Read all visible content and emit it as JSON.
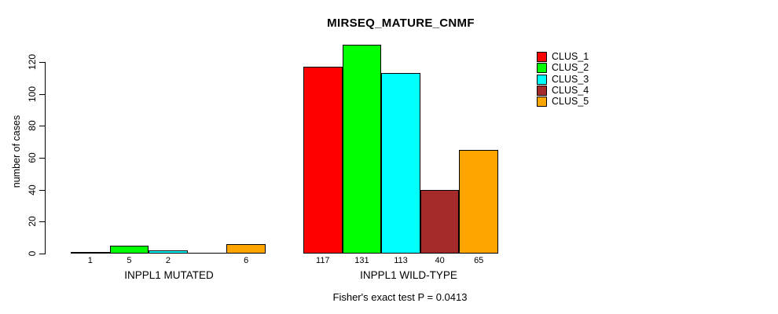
{
  "title": "MIRSEQ_MATURE_CNMF",
  "footer": "Fisher's exact test P = 0.0413",
  "chart_data": {
    "type": "bar",
    "title": "MIRSEQ_MATURE_CNMF",
    "xlabel": "",
    "ylabel": "number of cases",
    "ylim": [
      0,
      120
    ],
    "yticks": [
      0,
      20,
      40,
      60,
      80,
      100,
      120
    ],
    "grid": false,
    "legend_position": "top-right",
    "series": [
      {
        "name": "CLUS_1",
        "color": "#FF0000"
      },
      {
        "name": "CLUS_2",
        "color": "#00FF00"
      },
      {
        "name": "CLUS_3",
        "color": "#00FFFF"
      },
      {
        "name": "CLUS_4",
        "color": "#A52A2A"
      },
      {
        "name": "CLUS_5",
        "color": "#FFA500"
      }
    ],
    "groups": [
      {
        "label": "INPPL1 MUTATED",
        "values": [
          1,
          5,
          2,
          0,
          6
        ],
        "value_labels": [
          "1",
          "5",
          "2",
          "",
          "6"
        ]
      },
      {
        "label": "INPPL1 WILD-TYPE",
        "values": [
          117,
          131,
          113,
          40,
          65
        ],
        "value_labels": [
          "117",
          "131",
          "113",
          "40",
          "65"
        ]
      }
    ],
    "annotation": "Fisher's exact test P = 0.0413"
  }
}
